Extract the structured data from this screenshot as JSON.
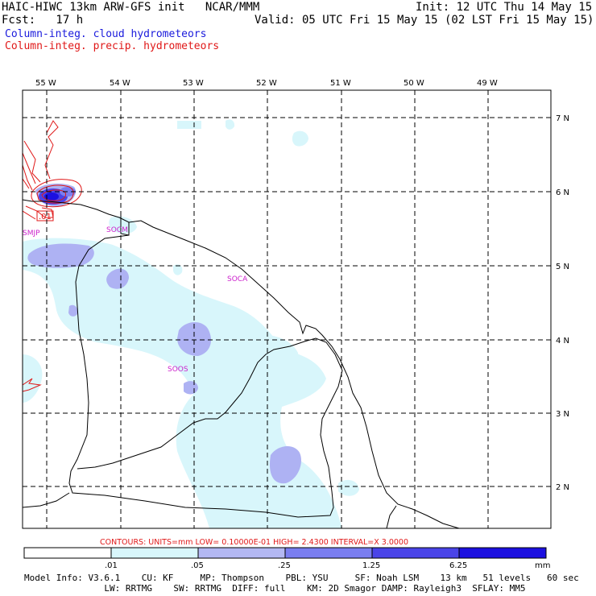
{
  "header": {
    "title_left": "HAIC-HIWC 13km ARW-GFS init   NCAR/MMM",
    "init": "Init: 12 UTC Thu 14 May 15",
    "fcst": "Fcst:   17 h",
    "valid": "Valid: 05 UTC Fri 15 May 15 (02 LST Fri 15 May 15)",
    "field_cloud": "Column-integ. cloud hydrometeors",
    "field_precip": "Column-integ. precip. hydrometeors"
  },
  "axes": {
    "lon_labels": [
      "55 W",
      "54 W",
      "53 W",
      "52 W",
      "51 W",
      "50 W",
      "49 W"
    ],
    "lat_labels": [
      "7 N",
      "6 N",
      "5 N",
      "4 N",
      "3 N",
      "2 N"
    ]
  },
  "stations": {
    "smjp": "SMJP",
    "socm": "SOCM",
    "soca": "SOCA",
    "soos": "SOOS"
  },
  "contour_label": ".01",
  "contours_line": "CONTOURS:  UNITS=mm  LOW= 0.10000E-01  HIGH=  2.4300      INTERVAL=X  3.0000",
  "colorbar": {
    "levels": [
      ".01",
      ".05",
      ".25",
      "1.25",
      "6.25"
    ],
    "unit": "mm",
    "colors": [
      "#ffffff",
      "#d8f6fb",
      "#b3b8f2",
      "#7a7ef0",
      "#4a44e8",
      "#1c10e0"
    ]
  },
  "model_info": {
    "line1": "Model Info: V3.6.1    CU: KF     MP: Thompson    PBL: YSU     SF: Noah LSM    13 km   51 levels   60 sec",
    "line2": "               LW: RRTMG    SW: RRTMG  DIFF: full    KM: 2D Smagor DAMP: Rayleigh3  SFLAY: MM5"
  },
  "colors": {
    "cloud_light": "#d8f6fb",
    "cloud_mid": "#aeb2f3",
    "precip_line": "#e01818",
    "label_magenta": "#cc22cc"
  }
}
